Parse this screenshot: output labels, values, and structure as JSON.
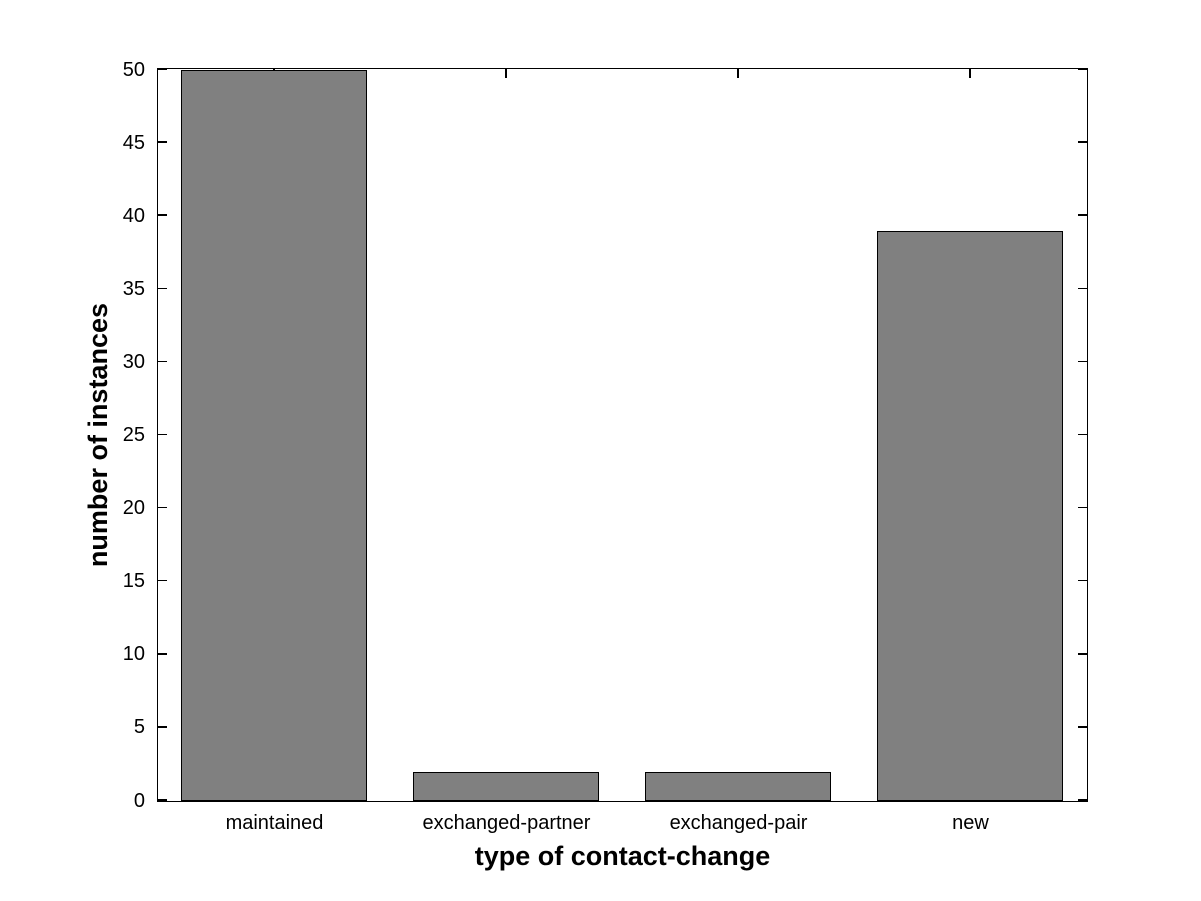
{
  "figure": {
    "background_color": "#ffffff",
    "axis_color": "#000000",
    "bar_fill_color": "#808080",
    "bar_edge_color": "#000000",
    "tick_label_color": "#000000"
  },
  "chart_data": {
    "type": "bar",
    "title": "",
    "categories": [
      "maintained",
      "exchanged-partner",
      "exchanged-pair",
      "new"
    ],
    "values": [
      50,
      2,
      2,
      39
    ],
    "xlabel": "type of contact-change",
    "ylabel": "number of instances",
    "ylim": [
      0,
      50
    ],
    "yticks": [
      0,
      5,
      10,
      15,
      20,
      25,
      30,
      35,
      40,
      45,
      50
    ],
    "bar_width_fraction": 0.8,
    "grid": false,
    "legend": null,
    "box": true,
    "ticks_direction": "in"
  }
}
